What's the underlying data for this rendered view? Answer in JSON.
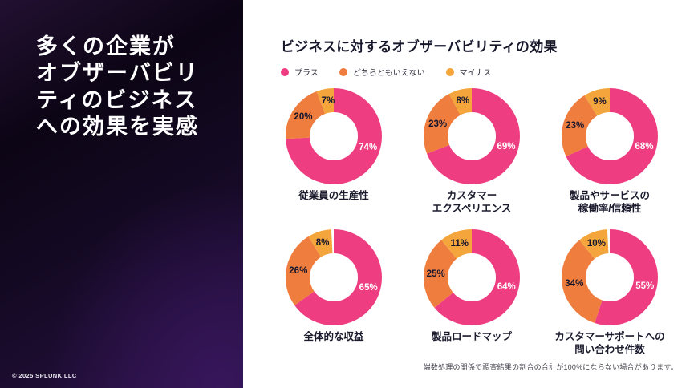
{
  "left_panel": {
    "title_lines": [
      "多くの企業が",
      "オブザーバビリ",
      "ティのビジネス",
      "への効果を実感"
    ],
    "copyright": "© 2025 SPLUNK LLC"
  },
  "main": {
    "title": "ビジネスに対するオブザーバビリティの効果",
    "footnote": "端数処理の関係で調査結果の割合の合計が100%にならない場合があります。"
  },
  "legend": {
    "position": "top-left",
    "items": [
      {
        "label": "プラス",
        "color": "#EE3D80"
      },
      {
        "label": "どちらともいえない",
        "color": "#EF7D3E"
      },
      {
        "label": "マイナス",
        "color": "#F4A63C"
      }
    ]
  },
  "colors": {
    "plus_pink": "#EE3D80",
    "neutral_orange": "#EF7D3E",
    "minus_amber": "#F4A63C",
    "label_dark": "#15152c",
    "label_light": "#ffffff",
    "panel_purple": "#271142",
    "text_dark": "#17172b"
  },
  "chart_data": [
    {
      "type": "pie",
      "title": "従業員の生産性",
      "title_lines": [
        "従業員の生産性"
      ],
      "labels": [
        "プラス",
        "どちらともいえない",
        "マイナス"
      ],
      "values": [
        74,
        20,
        7
      ]
    },
    {
      "type": "pie",
      "title": "カスタマーエクスペリエンス",
      "title_lines": [
        "カスタマー",
        "エクスペリエンス"
      ],
      "labels": [
        "プラス",
        "どちらともいえない",
        "マイナス"
      ],
      "values": [
        69,
        23,
        8
      ]
    },
    {
      "type": "pie",
      "title": "製品やサービスの稼働率/信頼性",
      "title_lines": [
        "製品やサービスの",
        "稼働率/信頼性"
      ],
      "labels": [
        "プラス",
        "どちらともいえない",
        "マイナス"
      ],
      "values": [
        68,
        23,
        9
      ]
    },
    {
      "type": "pie",
      "title": "全体的な収益",
      "title_lines": [
        "全体的な収益"
      ],
      "labels": [
        "プラス",
        "どちらともいえない",
        "マイナス"
      ],
      "values": [
        65,
        26,
        8
      ]
    },
    {
      "type": "pie",
      "title": "製品ロードマップ",
      "title_lines": [
        "製品ロードマップ"
      ],
      "labels": [
        "プラス",
        "どちらともいえない",
        "マイナス"
      ],
      "values": [
        64,
        25,
        11
      ]
    },
    {
      "type": "pie",
      "title": "カスタマーサポートへの問い合わせ件数",
      "title_lines": [
        "カスタマーサポートへの",
        "問い合わせ件数"
      ],
      "labels": [
        "プラス",
        "どちらともいえない",
        "マイナス"
      ],
      "values": [
        55,
        34,
        10
      ]
    }
  ]
}
